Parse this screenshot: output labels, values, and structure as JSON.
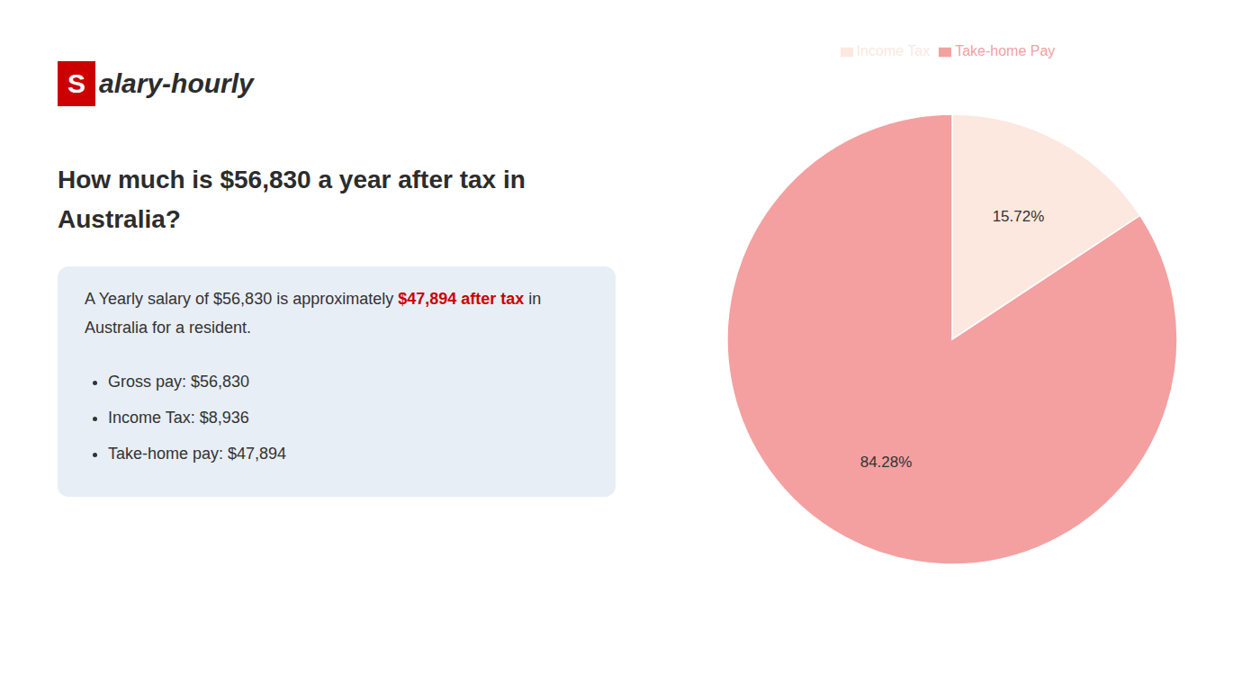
{
  "chart_data": {
    "type": "pie",
    "title": [
      "How much is $56,830 a year after tax in",
      "Australia?"
    ],
    "logo": {
      "mark": "S",
      "text": "alary-hourly",
      "color": "#cc0000"
    },
    "annotations": [
      [
        {
          "text": "A Yearly salary of $56,830 is approximately "
        },
        {
          "text": "$47,894 after tax",
          "color": "#cc0000"
        },
        {
          "text": " in"
        }
      ],
      [
        {
          "text": "Australia for a resident."
        }
      ]
    ],
    "bullets": [
      "Gross pay: $56,830",
      "Income Tax: $8,936",
      "Take-home pay: $47,894"
    ],
    "categories": [
      "Income Tax",
      "Take-home Pay"
    ],
    "values": [
      15.72,
      84.28
    ],
    "value_labels": [
      "15.72%",
      "84.28%"
    ],
    "colors": [
      "#fce8df",
      "#f4a0a0"
    ],
    "data_labels": true,
    "legend": "top"
  }
}
